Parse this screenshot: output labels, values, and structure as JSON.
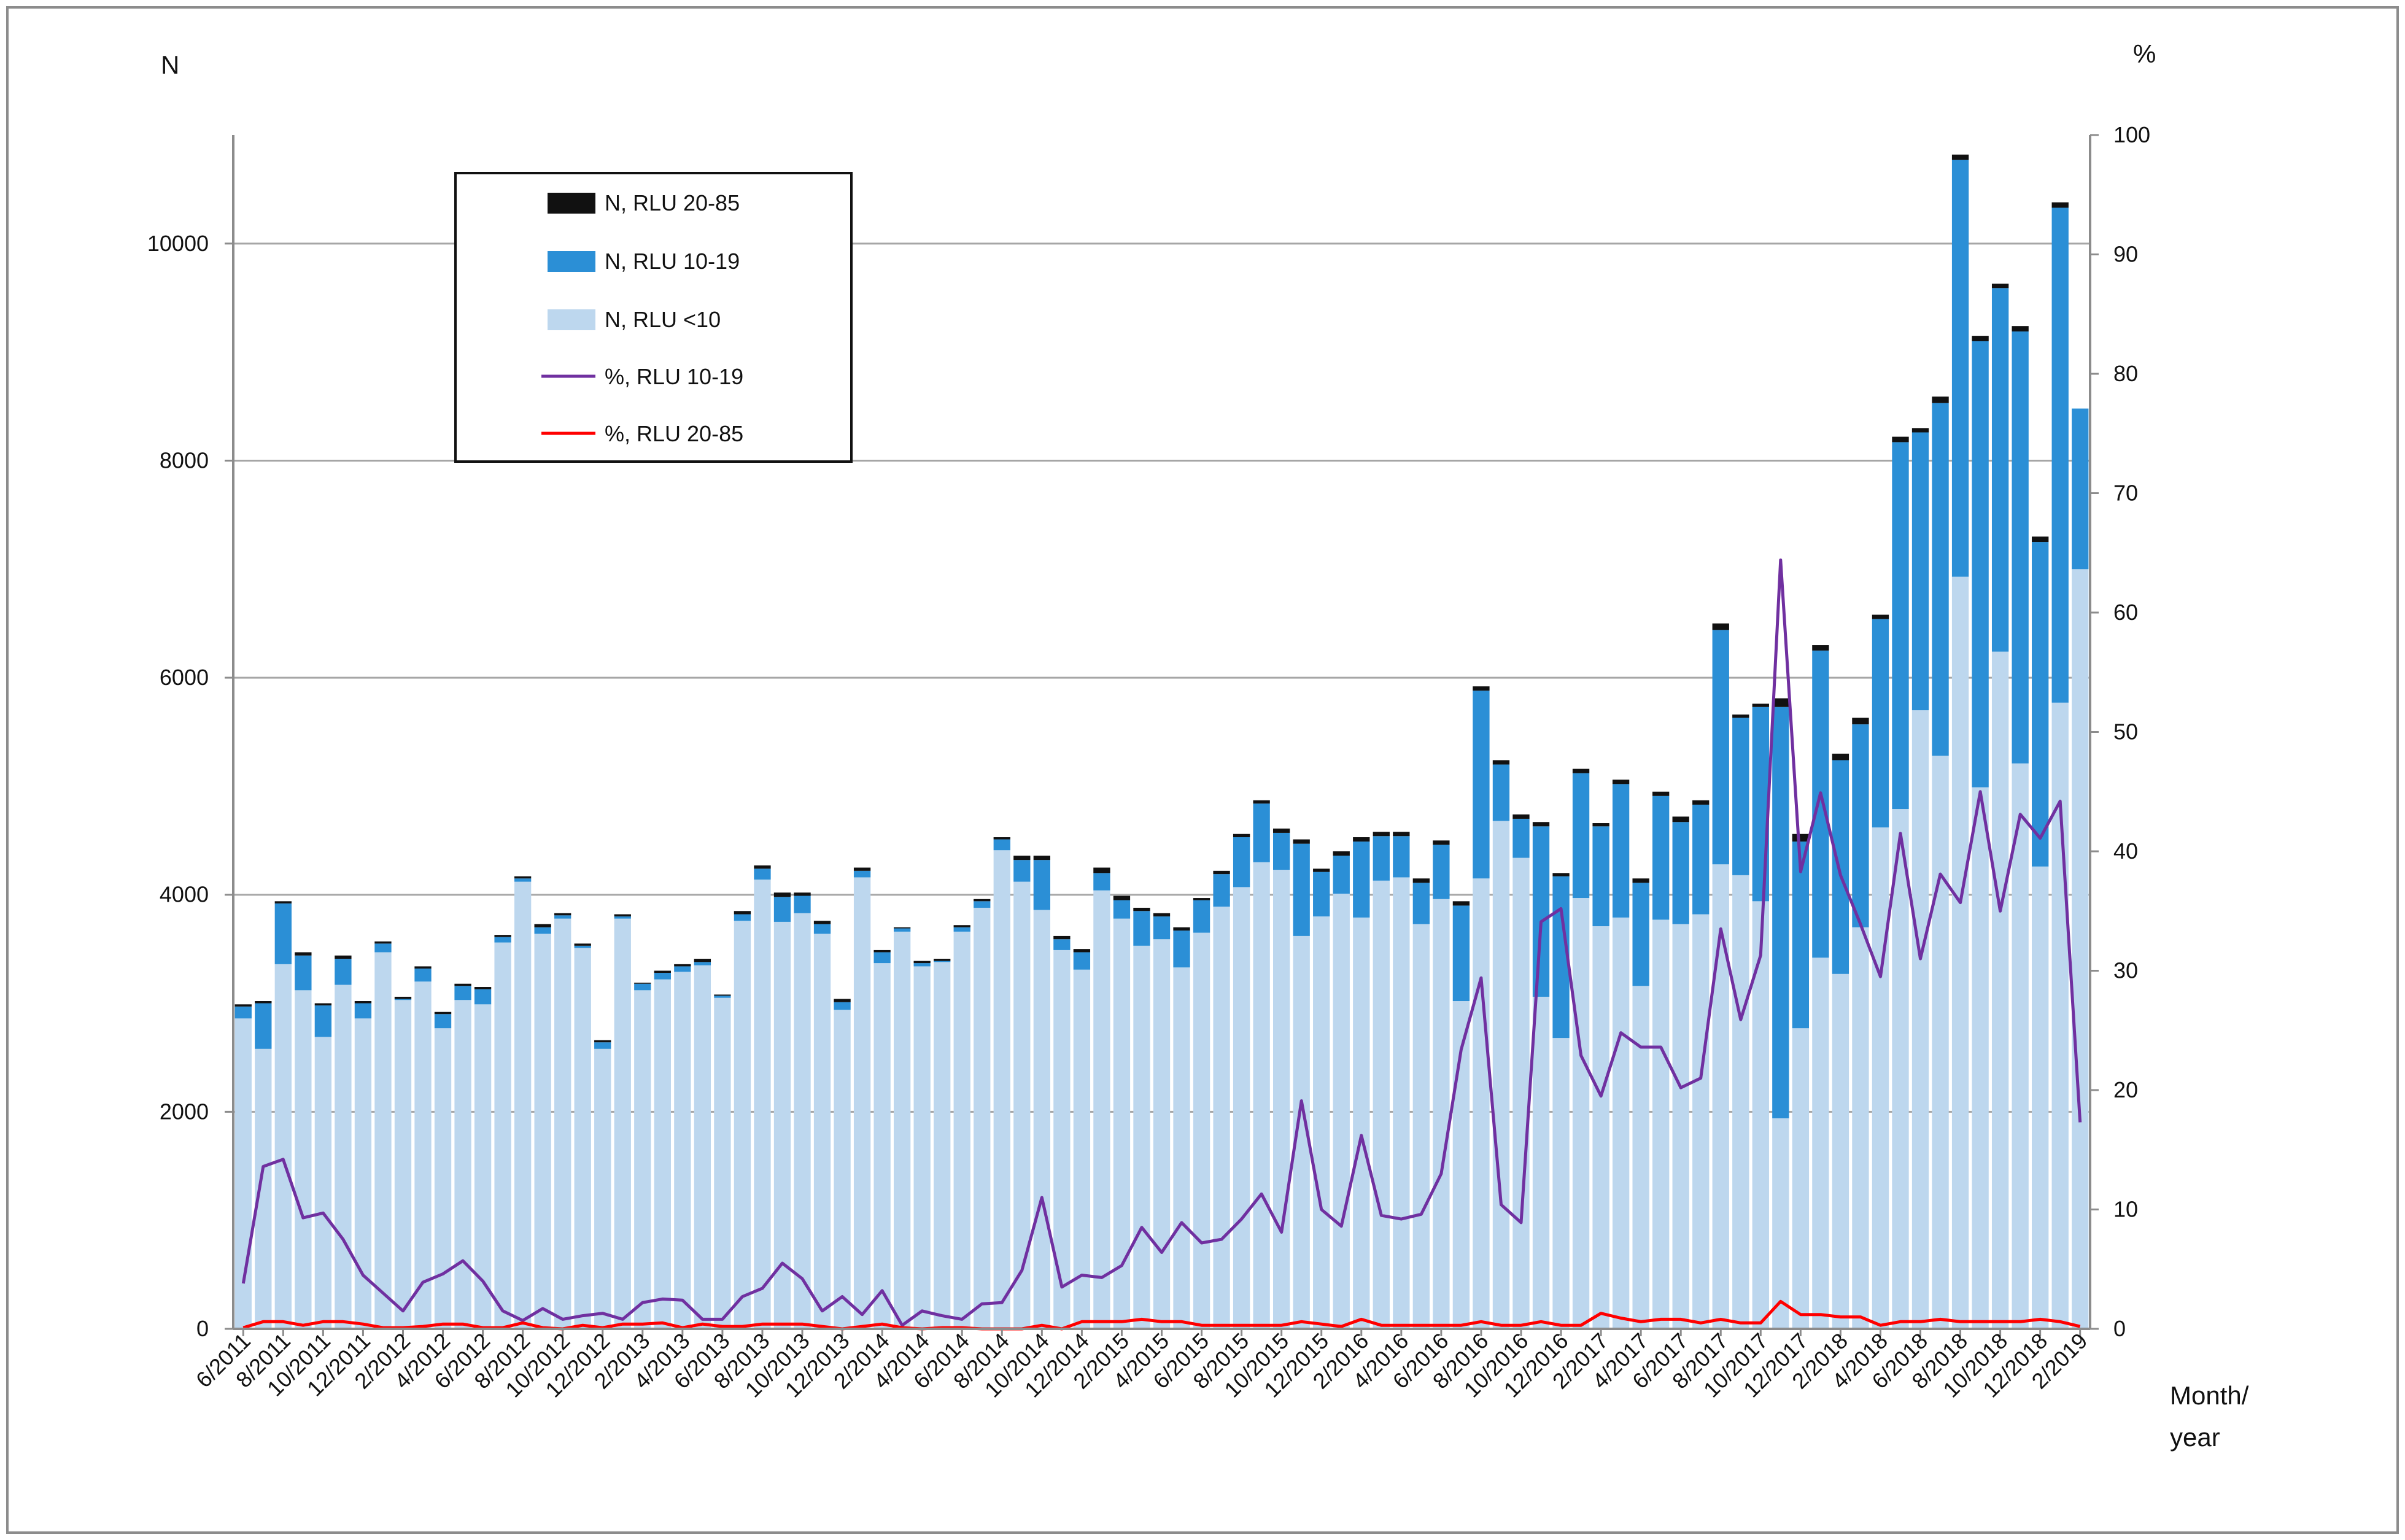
{
  "chart_data": {
    "type": "bar",
    "title": "",
    "ylabel_left": "N",
    "ylabel_right": "%",
    "xlabel_line1": "Month/",
    "xlabel_line2": "year",
    "ylim_left": [
      0,
      11000
    ],
    "ylim_right": [
      0,
      100
    ],
    "yticks_left": [
      "0",
      "2000",
      "4000",
      "6000",
      "8000",
      "10000"
    ],
    "yticks_right": [
      "0",
      "10",
      "20",
      "30",
      "40",
      "50",
      "60",
      "70",
      "80",
      "90",
      "100"
    ],
    "grid": true,
    "legend_position": "top-left",
    "colors": {
      "rlu_lt10": "#bdd7ee",
      "rlu_10_19": "#2b8fd6",
      "rlu_20_85": "#111111",
      "pct_10_19": "#7030a0",
      "pct_20_85": "#ff0000"
    },
    "legend": [
      {
        "label": "N, RLU 20-85",
        "kind": "bar",
        "color": "#111111"
      },
      {
        "label": "N, RLU 10-19",
        "kind": "bar",
        "color": "#2b8fd6"
      },
      {
        "label": "N, RLU <10",
        "kind": "bar",
        "color": "#bdd7ee"
      },
      {
        "label": "%, RLU 10-19",
        "kind": "line",
        "color": "#7030a0"
      },
      {
        "label": "%, RLU 20-85",
        "kind": "line",
        "color": "#ff0000"
      }
    ],
    "x_tick_labels": [
      "6/2011",
      "8/2011",
      "10/2011",
      "12/2011",
      "2/2012",
      "4/2012",
      "6/2012",
      "8/2012",
      "10/2012",
      "12/2012",
      "2/2013",
      "4/2013",
      "6/2013",
      "8/2013",
      "10/2013",
      "12/2013",
      "2/2014",
      "4/2014",
      "6/2014",
      "8/2014",
      "10/2014",
      "12/2014",
      "2/2015",
      "4/2015",
      "6/2015",
      "8/2015",
      "10/2015",
      "12/2015",
      "2/2016",
      "4/2016",
      "6/2016",
      "8/2016",
      "10/2016",
      "12/2016",
      "2/2017",
      "4/2017",
      "6/2017",
      "8/2017",
      "10/2017",
      "12/2017",
      "2/2018",
      "4/2018",
      "6/2018",
      "8/2018",
      "10/2018",
      "12/2018",
      "2/2019"
    ],
    "totals": [
      2990,
      3020,
      3940,
      3470,
      3000,
      3440,
      3020,
      3570,
      3060,
      3340,
      2920,
      3180,
      3150,
      3630,
      4170,
      3730,
      3830,
      3550,
      2660,
      3820,
      3190,
      3300,
      3360,
      3410,
      3080,
      3850,
      4270,
      4020,
      4020,
      3760,
      3040,
      4250,
      3490,
      3700,
      3390,
      3410,
      3720,
      3960,
      4530,
      4360,
      4360,
      3620,
      3500,
      4250,
      3990,
      3880,
      3830,
      3700,
      3970,
      4220,
      4560,
      4870,
      4610,
      4510,
      4240,
      4400,
      4530,
      4580,
      4580,
      4150,
      4500,
      3940,
      5920,
      5240,
      4740,
      4670,
      4200,
      5160,
      4660,
      5060,
      4150,
      4950,
      4720,
      4870,
      6500,
      5660,
      5760,
      5810,
      4560,
      6300,
      5300,
      5630,
      6580,
      8220,
      8300,
      8590,
      10820,
      9150,
      9630,
      9240,
      7300,
      10380,
      8480
    ],
    "rlu_lt10": [
      2860,
      2580,
      3360,
      3120,
      2690,
      3170,
      2860,
      3470,
      3030,
      3200,
      2770,
      3030,
      2990,
      3560,
      4120,
      3640,
      3780,
      3510,
      2580,
      3780,
      3120,
      3220,
      3290,
      3350,
      3050,
      3760,
      4140,
      3750,
      3830,
      3640,
      2940,
      4160,
      3370,
      3660,
      3340,
      3380,
      3660,
      3880,
      4410,
      4120,
      3860,
      3490,
      3310,
      4040,
      3780,
      3530,
      3590,
      3330,
      3650,
      3890,
      4070,
      4300,
      4230,
      3620,
      3800,
      4010,
      3790,
      4130,
      4160,
      3730,
      3960,
      3020,
      4150,
      4680,
      4340,
      3060,
      2680,
      3970,
      3710,
      3790,
      3160,
      3770,
      3730,
      3820,
      4280,
      4180,
      3940,
      1940,
      2770,
      3420,
      3270,
      3700,
      4620,
      4790,
      5700,
      5280,
      6930,
      4990,
      6240,
      5210,
      4260,
      5770,
      7000
    ],
    "rlu_10_19": [
      110,
      420,
      560,
      320,
      290,
      240,
      140,
      80,
      10,
      120,
      130,
      130,
      140,
      50,
      30,
      60,
      30,
      20,
      60,
      20,
      60,
      60,
      50,
      30,
      20,
      60,
      100,
      230,
      160,
      90,
      70,
      60,
      100,
      30,
      30,
      10,
      40,
      60,
      100,
      200,
      460,
      100,
      160,
      160,
      170,
      320,
      210,
      340,
      300,
      300,
      460,
      540,
      340,
      850,
      410,
      350,
      700,
      410,
      380,
      380,
      500,
      880,
      1730,
      520,
      360,
      1570,
      1490,
      1150,
      920,
      1230,
      950,
      1140,
      940,
      1010,
      2160,
      1450,
      1790,
      3790,
      1720,
      2830,
      1970,
      1870,
      1920,
      3380,
      2560,
      3250,
      3840,
      4110,
      3350,
      3980,
      2990,
      4560,
      1480
    ],
    "rlu_20_85": [
      20,
      20,
      20,
      30,
      20,
      30,
      20,
      20,
      20,
      20,
      20,
      20,
      20,
      20,
      20,
      30,
      20,
      20,
      20,
      20,
      10,
      20,
      20,
      30,
      10,
      30,
      30,
      40,
      30,
      30,
      30,
      30,
      20,
      10,
      20,
      20,
      20,
      20,
      20,
      40,
      40,
      30,
      30,
      50,
      40,
      30,
      30,
      30,
      20,
      30,
      30,
      30,
      40,
      40,
      30,
      40,
      40,
      40,
      40,
      40,
      40,
      40,
      40,
      40,
      40,
      40,
      30,
      40,
      30,
      40,
      40,
      40,
      50,
      40,
      60,
      30,
      30,
      80,
      70,
      50,
      60,
      60,
      40,
      50,
      40,
      60,
      50,
      50,
      40,
      50,
      50,
      50,
      0
    ],
    "pct_10_19": [
      3.8,
      13.6,
      14.2,
      9.3,
      9.7,
      7.5,
      4.5,
      3,
      1.5,
      3.9,
      4.6,
      5.7,
      4,
      1.5,
      0.7,
      1.7,
      0.8,
      1.1,
      1.3,
      0.8,
      2.2,
      2.5,
      2.4,
      0.8,
      0.8,
      2.7,
      3.4,
      5.5,
      4.2,
      1.5,
      2.7,
      1.2,
      3.2,
      0.3,
      1.5,
      1.1,
      0.8,
      2.1,
      2.2,
      4.9,
      11,
      3.5,
      4.5,
      4.3,
      5.3,
      8.5,
      6.4,
      8.9,
      7.2,
      7.5,
      9.2,
      11.3,
      8.1,
      19.1,
      10,
      8.6,
      16.2,
      9.5,
      9.2,
      9.6,
      13,
      23.4,
      29.4,
      10.4,
      8.9,
      34.1,
      35.2,
      22.9,
      19.5,
      24.8,
      23.6,
      23.6,
      20.2,
      21,
      33.5,
      25.9,
      31.3,
      64.4,
      38.3,
      44.9,
      38,
      33.9,
      29.5,
      41.5,
      31,
      38.1,
      35.7,
      45,
      35,
      43.1,
      41.1,
      44.2,
      17.3
    ],
    "pct_20_85": [
      0.1,
      0.6,
      0.6,
      0.3,
      0.6,
      0.6,
      0.4,
      0.1,
      0.1,
      0.2,
      0.4,
      0.4,
      0.1,
      0.1,
      0.5,
      0.1,
      0,
      0.3,
      0.1,
      0.4,
      0.4,
      0.5,
      0.1,
      0.4,
      0.2,
      0.2,
      0.4,
      0.4,
      0.4,
      0.2,
      0,
      0.2,
      0.4,
      0.1,
      0,
      0.1,
      0.1,
      0,
      0,
      0,
      0.3,
      0,
      0.6,
      0.6,
      0.6,
      0.8,
      0.6,
      0.6,
      0.3,
      0.3,
      0.3,
      0.3,
      0.3,
      0.6,
      0.4,
      0.2,
      0.8,
      0.3,
      0.3,
      0.3,
      0.3,
      0.3,
      0.6,
      0.3,
      0.3,
      0.6,
      0.3,
      0.3,
      1.3,
      0.9,
      0.6,
      0.8,
      0.8,
      0.5,
      0.8,
      0.5,
      0.5,
      2.3,
      1.2,
      1.2,
      1,
      1,
      0.3,
      0.6,
      0.6,
      0.8,
      0.6,
      0.6,
      0.6,
      0.6,
      0.8,
      0.6,
      0.2
    ]
  }
}
